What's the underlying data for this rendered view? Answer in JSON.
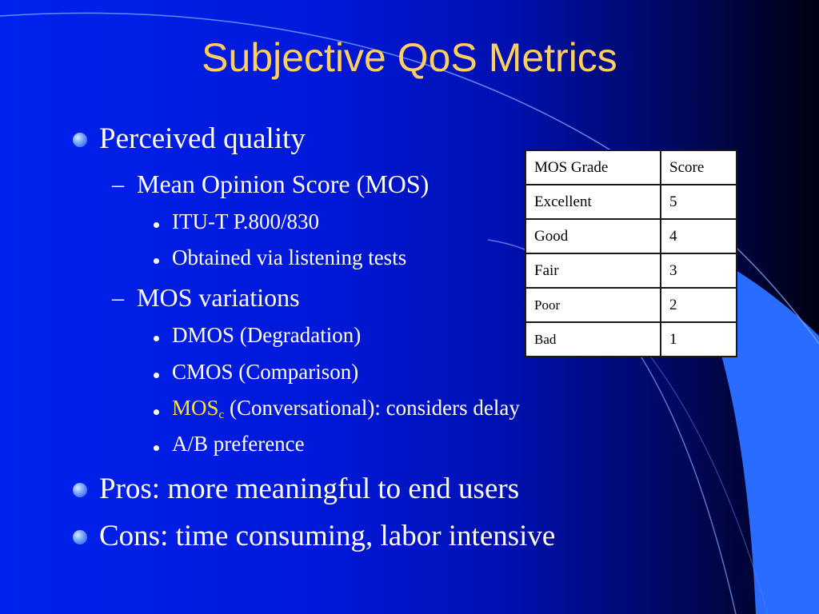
{
  "title": "Subjective QoS Metrics",
  "bullets": {
    "perceived_quality": "Perceived quality",
    "mos": "Mean Opinion Score (MOS)",
    "itu": "ITU-T P.800/830",
    "listening": "Obtained via listening tests",
    "mos_variations": "MOS variations",
    "dmos": "DMOS (Degradation)",
    "cmos": "CMOS (Comparison)",
    "mosc_main": "MOS",
    "mosc_sub": "c",
    "mosc_rest": " (Conversational): considers delay",
    "ab": "A/B preference",
    "pros": "Pros: more meaningful to end users",
    "cons": "Cons: time consuming, labor intensive"
  },
  "table": {
    "headers": [
      "MOS Grade",
      "Score"
    ],
    "rows": [
      {
        "grade": "Excellent",
        "score": "5"
      },
      {
        "grade": "Good",
        "score": "4"
      },
      {
        "grade": "Fair",
        "score": "3"
      },
      {
        "grade": "Poor",
        "score": "2"
      },
      {
        "grade": "Bad",
        "score": "1"
      }
    ]
  },
  "colors": {
    "background": "#0022ee",
    "title": "#ffd060",
    "highlight": "#ffe040",
    "accent_curve": "#2a6cff"
  }
}
